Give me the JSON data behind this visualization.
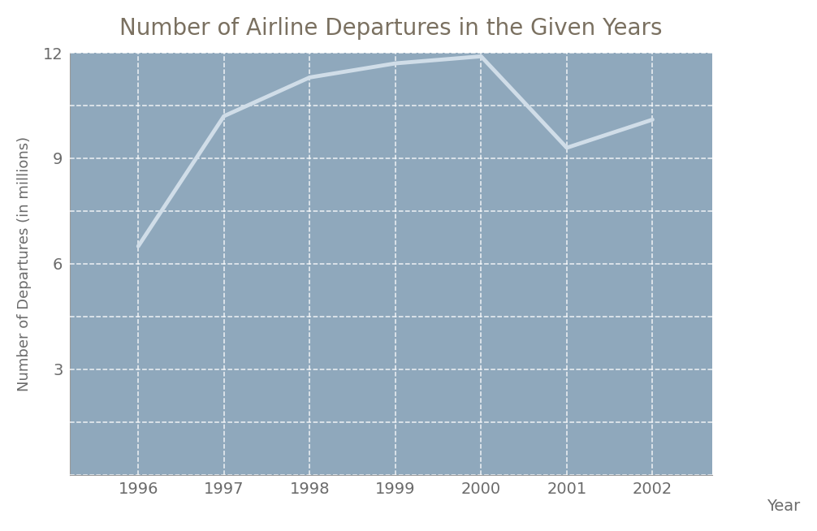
{
  "title": "Number of Airline Departures in the Given Years",
  "xlabel": "Year",
  "ylabel": "Number of Departures (in millions)",
  "x": [
    1996,
    1997,
    1998,
    1999,
    2000,
    2001,
    2002
  ],
  "y": [
    6.5,
    10.2,
    11.3,
    11.7,
    11.9,
    9.3,
    10.1
  ],
  "background_color": "#8fa8bc",
  "line_color": "#d0dde8",
  "line_width": 3.5,
  "grid_color": "#ffffff",
  "grid_linestyle": "--",
  "grid_alpha": 0.85,
  "ylim": [
    0,
    12
  ],
  "yticks": [
    0,
    1.5,
    3,
    4.5,
    6,
    7.5,
    9,
    10.5,
    12
  ],
  "ytick_labels": [
    "",
    "",
    "3",
    "",
    "6",
    "",
    "9",
    "",
    "12"
  ],
  "title_color": "#7a7060",
  "title_fontsize": 20,
  "axis_label_fontsize": 13,
  "tick_fontsize": 14,
  "tick_color": "#6b6b6b",
  "figure_bg": "#ffffff",
  "xlim_left": 1995.2,
  "xlim_right": 2002.7
}
